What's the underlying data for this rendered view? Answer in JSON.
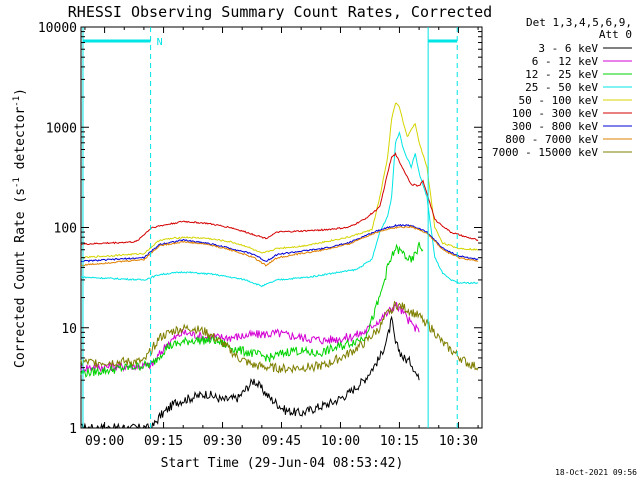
{
  "chart_data": {
    "type": "line",
    "title": "RHESSI Observing Summary Count Rates, Corrected",
    "xlabel": "Start Time (29-Jun-04 08:53:42)",
    "ylabel_main": "Corrected Count Rate (s",
    "ylabel_sup": "-1",
    "ylabel_mid": " detector",
    "ylabel_sup2": "-1",
    "ylabel_end": ")",
    "yscale": "log",
    "ylim": [
      1,
      10000
    ],
    "xlim_minutes": [
      -6,
      96
    ],
    "x_ticks": [
      {
        "m": 0,
        "label": "09:00"
      },
      {
        "m": 15,
        "label": "09:15"
      },
      {
        "m": 30,
        "label": "09:30"
      },
      {
        "m": 45,
        "label": "09:45"
      },
      {
        "m": 60,
        "label": "10:00"
      },
      {
        "m": 75,
        "label": "10:15"
      },
      {
        "m": 90,
        "label": "10:30"
      }
    ],
    "y_ticks": [
      {
        "v": 1,
        "label": "1"
      },
      {
        "v": 10,
        "label": "10"
      },
      {
        "v": 100,
        "label": "100"
      },
      {
        "v": 1000,
        "label": "1000"
      },
      {
        "v": 10000,
        "label": "10000"
      }
    ],
    "legend_header": [
      "Det 1,3,4,5,6,9,",
      "Att 0"
    ],
    "footer_date": "18-Oct-2021 09:56",
    "night_marker": "N",
    "vlines_minutes": [
      -5.5,
      11.7,
      82.3,
      89.7
    ],
    "saa_bars": [
      {
        "from": -5.5,
        "to": 11.7
      },
      {
        "from": 82.3,
        "to": 89.7
      }
    ],
    "series": [
      {
        "name": "3 - 6 keV",
        "color": "#000000",
        "points": [
          [
            -6,
            1
          ],
          [
            12,
            1
          ],
          [
            14,
            1.3
          ],
          [
            18,
            1.8
          ],
          [
            22,
            2
          ],
          [
            26,
            2.2
          ],
          [
            30,
            1.9
          ],
          [
            34,
            2
          ],
          [
            38,
            3
          ],
          [
            42,
            2
          ],
          [
            46,
            1.5
          ],
          [
            50,
            1.4
          ],
          [
            54,
            1.6
          ],
          [
            58,
            1.8
          ],
          [
            62,
            2.2
          ],
          [
            66,
            3
          ],
          [
            70,
            5
          ],
          [
            72,
            8
          ],
          [
            73,
            12
          ],
          [
            74,
            7
          ],
          [
            76,
            5
          ],
          [
            78,
            4.5
          ],
          [
            80,
            3
          ]
        ]
      },
      {
        "name": "6 - 12 keV",
        "color": "#d400d4",
        "points": [
          [
            -6,
            4
          ],
          [
            12,
            4.2
          ],
          [
            16,
            7
          ],
          [
            20,
            9
          ],
          [
            26,
            8
          ],
          [
            32,
            8
          ],
          [
            38,
            8.5
          ],
          [
            44,
            8.8
          ],
          [
            50,
            8
          ],
          [
            56,
            7.5
          ],
          [
            62,
            8
          ],
          [
            66,
            9
          ],
          [
            68,
            10.5
          ],
          [
            70,
            12
          ],
          [
            72,
            14
          ],
          [
            74,
            17
          ],
          [
            76,
            14
          ],
          [
            78,
            11
          ],
          [
            80,
            9
          ]
        ]
      },
      {
        "name": "12 - 25 keV",
        "color": "#00d400",
        "points": [
          [
            -6,
            3.5
          ],
          [
            12,
            4.3
          ],
          [
            16,
            6.5
          ],
          [
            22,
            7.5
          ],
          [
            28,
            7.5
          ],
          [
            34,
            6
          ],
          [
            38,
            5.5
          ],
          [
            42,
            5
          ],
          [
            48,
            6
          ],
          [
            54,
            5.5
          ],
          [
            60,
            6.5
          ],
          [
            66,
            8
          ],
          [
            68,
            12
          ],
          [
            70,
            20
          ],
          [
            72,
            40
          ],
          [
            74,
            62
          ],
          [
            76,
            55
          ],
          [
            78,
            45
          ],
          [
            80,
            65
          ],
          [
            81,
            60
          ]
        ]
      },
      {
        "name": "25 - 50 keV",
        "color": "#00e5e5",
        "points": [
          [
            -6,
            32
          ],
          [
            10,
            30
          ],
          [
            14,
            34
          ],
          [
            20,
            36
          ],
          [
            28,
            34
          ],
          [
            36,
            30
          ],
          [
            40,
            26
          ],
          [
            44,
            30
          ],
          [
            52,
            32
          ],
          [
            58,
            35
          ],
          [
            64,
            38
          ],
          [
            68,
            48
          ],
          [
            70,
            90
          ],
          [
            72,
            130
          ],
          [
            73,
            200
          ],
          [
            74,
            700
          ],
          [
            75,
            900
          ],
          [
            76,
            600
          ],
          [
            78,
            400
          ],
          [
            79,
            550
          ],
          [
            80,
            350
          ],
          [
            82,
            200
          ],
          [
            84,
            50
          ],
          [
            86,
            35
          ],
          [
            88,
            30
          ],
          [
            90,
            28
          ],
          [
            95,
            28
          ]
        ]
      },
      {
        "name": "50 - 100 keV",
        "color": "#d4d400",
        "points": [
          [
            -6,
            50
          ],
          [
            10,
            55
          ],
          [
            14,
            75
          ],
          [
            20,
            80
          ],
          [
            26,
            78
          ],
          [
            32,
            72
          ],
          [
            36,
            65
          ],
          [
            40,
            55
          ],
          [
            44,
            62
          ],
          [
            50,
            65
          ],
          [
            56,
            72
          ],
          [
            62,
            80
          ],
          [
            68,
            95
          ],
          [
            70,
            200
          ],
          [
            72,
            500
          ],
          [
            73,
            1200
          ],
          [
            74,
            1750
          ],
          [
            75,
            1600
          ],
          [
            76,
            1100
          ],
          [
            77,
            800
          ],
          [
            79,
            1100
          ],
          [
            80,
            700
          ],
          [
            82,
            400
          ],
          [
            84,
            100
          ],
          [
            86,
            70
          ],
          [
            90,
            62
          ],
          [
            95,
            60
          ]
        ]
      },
      {
        "name": "100 - 300 keV",
        "color": "#d40000",
        "points": [
          [
            -6,
            68
          ],
          [
            8,
            72
          ],
          [
            12,
            100
          ],
          [
            20,
            115
          ],
          [
            26,
            110
          ],
          [
            32,
            100
          ],
          [
            38,
            85
          ],
          [
            41,
            78
          ],
          [
            44,
            90
          ],
          [
            50,
            92
          ],
          [
            56,
            95
          ],
          [
            62,
            100
          ],
          [
            66,
            120
          ],
          [
            70,
            160
          ],
          [
            72,
            350
          ],
          [
            73,
            500
          ],
          [
            74,
            540
          ],
          [
            76,
            380
          ],
          [
            78,
            270
          ],
          [
            80,
            260
          ],
          [
            81,
            290
          ],
          [
            82,
            220
          ],
          [
            84,
            120
          ],
          [
            88,
            90
          ],
          [
            92,
            80
          ],
          [
            95,
            75
          ]
        ]
      },
      {
        "name": "300 - 800 keV",
        "color": "#0000d4",
        "points": [
          [
            -6,
            46
          ],
          [
            10,
            50
          ],
          [
            14,
            68
          ],
          [
            20,
            75
          ],
          [
            26,
            70
          ],
          [
            32,
            62
          ],
          [
            38,
            54
          ],
          [
            41,
            46
          ],
          [
            44,
            54
          ],
          [
            50,
            58
          ],
          [
            56,
            62
          ],
          [
            62,
            70
          ],
          [
            66,
            82
          ],
          [
            70,
            95
          ],
          [
            74,
            105
          ],
          [
            78,
            105
          ],
          [
            82,
            90
          ],
          [
            86,
            62
          ],
          [
            90,
            52
          ],
          [
            95,
            48
          ]
        ]
      },
      {
        "name": "800 - 7000 keV",
        "color": "#e08000",
        "points": [
          [
            -6,
            42
          ],
          [
            10,
            48
          ],
          [
            14,
            66
          ],
          [
            20,
            72
          ],
          [
            26,
            68
          ],
          [
            32,
            60
          ],
          [
            38,
            50
          ],
          [
            41,
            42
          ],
          [
            44,
            50
          ],
          [
            50,
            55
          ],
          [
            56,
            60
          ],
          [
            62,
            68
          ],
          [
            66,
            80
          ],
          [
            70,
            92
          ],
          [
            74,
            100
          ],
          [
            78,
            102
          ],
          [
            82,
            88
          ],
          [
            86,
            60
          ],
          [
            90,
            50
          ],
          [
            95,
            46
          ]
        ]
      },
      {
        "name": "7000 - 15000 keV",
        "color": "#7f7f00",
        "points": [
          [
            -6,
            4.5
          ],
          [
            10,
            4.6
          ],
          [
            14,
            8
          ],
          [
            18,
            9.5
          ],
          [
            22,
            10
          ],
          [
            26,
            9
          ],
          [
            30,
            7
          ],
          [
            34,
            5
          ],
          [
            38,
            4.2
          ],
          [
            42,
            4
          ],
          [
            46,
            3.9
          ],
          [
            50,
            4
          ],
          [
            56,
            4.2
          ],
          [
            62,
            5.5
          ],
          [
            66,
            7
          ],
          [
            70,
            10
          ],
          [
            72,
            14
          ],
          [
            74,
            17
          ],
          [
            76,
            16
          ],
          [
            80,
            13
          ],
          [
            82,
            11
          ],
          [
            84,
            9
          ],
          [
            86,
            7
          ],
          [
            90,
            5.2
          ],
          [
            92,
            4.5
          ],
          [
            95,
            4
          ]
        ]
      }
    ]
  }
}
